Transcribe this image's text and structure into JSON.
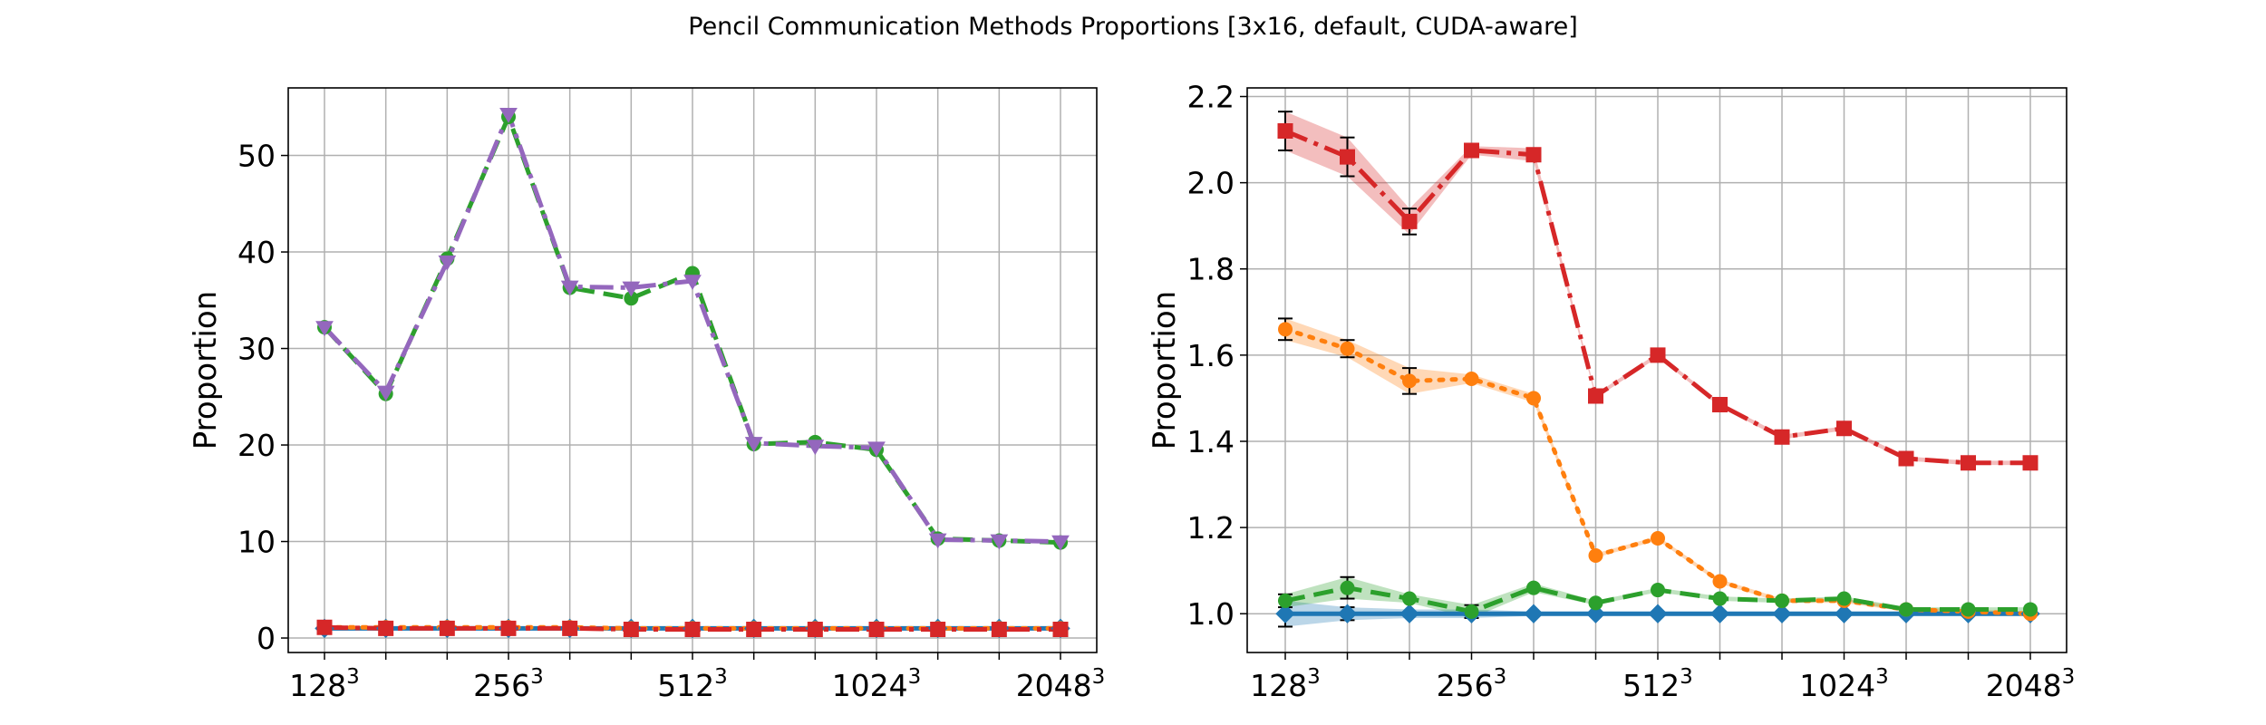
{
  "figure": {
    "title": "Pencil Communication Methods Proportions [3x16, default, CUDA-aware]"
  },
  "chart_data": [
    {
      "type": "line",
      "ylabel": "Proportion",
      "xlabel": "",
      "x_tick_labels": [
        {
          "base": "128",
          "exp": "3"
        },
        {
          "base": "256",
          "exp": "3"
        },
        {
          "base": "512",
          "exp": "3"
        },
        {
          "base": "1024",
          "exp": "3"
        },
        {
          "base": "2048",
          "exp": "3"
        }
      ],
      "ylim": [
        -1.5,
        57
      ],
      "yticks": [
        0,
        10,
        20,
        30,
        40,
        50
      ],
      "grid": true,
      "series": [
        {
          "color": "#1f77b4",
          "linestyle": "solid",
          "marker": "diamond",
          "values": [
            1,
            1,
            1,
            1,
            1,
            1,
            1,
            1,
            1,
            1,
            1,
            1,
            1
          ]
        },
        {
          "color": "#ff7f0e",
          "linestyle": "dotted",
          "marker": "circle",
          "values": [
            1.1,
            1.1,
            1.1,
            1.1,
            1.1,
            1.0,
            1.0,
            1.0,
            1.0,
            1.0,
            1.0,
            1.0,
            1.0
          ]
        },
        {
          "color": "#2ca02c",
          "linestyle": "dashed",
          "marker": "circle",
          "values": [
            32.2,
            25.3,
            39.3,
            54.0,
            36.3,
            35.2,
            37.8,
            20.1,
            20.3,
            19.5,
            10.3,
            10.1,
            9.9
          ]
        },
        {
          "color": "#d62728",
          "linestyle": "dashdot",
          "marker": "square",
          "values": [
            1.1,
            1.0,
            1.0,
            1.0,
            1.0,
            0.9,
            0.9,
            0.9,
            0.9,
            0.9,
            0.9,
            0.9,
            0.9
          ]
        },
        {
          "color": "#9467bd",
          "linestyle": "dashdot",
          "marker": "triangle-down",
          "values": [
            32.2,
            25.5,
            39.0,
            54.3,
            36.4,
            36.3,
            37.0,
            20.2,
            19.9,
            19.7,
            10.2,
            10.1,
            10.0
          ]
        }
      ]
    },
    {
      "type": "line",
      "ylabel": "Proportion",
      "xlabel": "",
      "x_tick_labels": [
        {
          "base": "128",
          "exp": "3"
        },
        {
          "base": "256",
          "exp": "3"
        },
        {
          "base": "512",
          "exp": "3"
        },
        {
          "base": "1024",
          "exp": "3"
        },
        {
          "base": "2048",
          "exp": "3"
        }
      ],
      "ylim": [
        0.91,
        2.22
      ],
      "yticks": [
        1.0,
        1.2,
        1.4,
        1.6,
        1.8,
        2.0,
        2.2
      ],
      "grid": true,
      "series": [
        {
          "color": "#1f77b4",
          "linestyle": "solid",
          "marker": "diamond",
          "values": [
            1.0,
            1.0,
            1.0,
            1.0,
            1.0,
            1.0,
            1.0,
            1.0,
            1.0,
            1.0,
            1.0,
            1.0,
            1.0
          ],
          "band": [
            0.03,
            0.015,
            0.01,
            0.01,
            0.005,
            0.005,
            0.005,
            0.005,
            0.005,
            0.005,
            0.005,
            0.005,
            0.005
          ]
        },
        {
          "color": "#ff7f0e",
          "linestyle": "dotted",
          "marker": "circle",
          "values": [
            1.66,
            1.615,
            1.54,
            1.545,
            1.5,
            1.135,
            1.175,
            1.075,
            1.03,
            1.03,
            1.01,
            1.005,
            1.0
          ],
          "band": [
            0.025,
            0.02,
            0.03,
            0.01,
            0.01,
            0.005,
            0.005,
            0.005,
            0.005,
            0.005,
            0.005,
            0.005,
            0.005
          ]
        },
        {
          "color": "#2ca02c",
          "linestyle": "dashed",
          "marker": "circle",
          "values": [
            1.03,
            1.06,
            1.035,
            1.005,
            1.06,
            1.025,
            1.055,
            1.035,
            1.03,
            1.035,
            1.01,
            1.01,
            1.01
          ],
          "band": [
            0.015,
            0.025,
            0.01,
            0.015,
            0.01,
            0.005,
            0.005,
            0.005,
            0.005,
            0.005,
            0.005,
            0.005,
            0.005
          ]
        },
        {
          "color": "#d62728",
          "linestyle": "dashdot",
          "marker": "square",
          "values": [
            2.12,
            2.06,
            1.91,
            2.075,
            2.065,
            1.505,
            1.6,
            1.485,
            1.41,
            1.43,
            1.36,
            1.35,
            1.35
          ],
          "band": [
            0.045,
            0.045,
            0.03,
            0.01,
            0.015,
            0.005,
            0.005,
            0.005,
            0.005,
            0.005,
            0.005,
            0.005,
            0.005
          ]
        }
      ]
    }
  ]
}
